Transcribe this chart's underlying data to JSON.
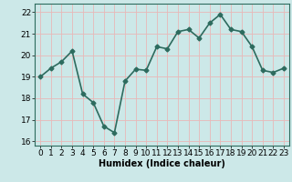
{
  "x": [
    0,
    1,
    2,
    3,
    4,
    5,
    6,
    7,
    8,
    9,
    10,
    11,
    12,
    13,
    14,
    15,
    16,
    17,
    18,
    19,
    20,
    21,
    22,
    23
  ],
  "y": [
    19.0,
    19.4,
    19.7,
    20.2,
    18.2,
    17.8,
    16.7,
    16.4,
    18.8,
    19.35,
    19.3,
    20.4,
    20.3,
    21.1,
    21.2,
    20.8,
    21.5,
    21.9,
    21.2,
    21.1,
    20.4,
    19.3,
    19.2,
    19.4
  ],
  "line_color": "#2d6b5e",
  "marker": "D",
  "marker_size": 2.5,
  "bg_color": "#cce8e8",
  "grid_color": "#e8b8b8",
  "title": "",
  "xlabel": "Humidex (Indice chaleur)",
  "ylabel": "",
  "xlim": [
    -0.5,
    23.5
  ],
  "ylim": [
    15.8,
    22.4
  ],
  "yticks": [
    16,
    17,
    18,
    19,
    20,
    21,
    22
  ],
  "xticks": [
    0,
    1,
    2,
    3,
    4,
    5,
    6,
    7,
    8,
    9,
    10,
    11,
    12,
    13,
    14,
    15,
    16,
    17,
    18,
    19,
    20,
    21,
    22,
    23
  ],
  "xlabel_fontsize": 7.0,
  "tick_fontsize": 6.5,
  "line_width": 1.2
}
